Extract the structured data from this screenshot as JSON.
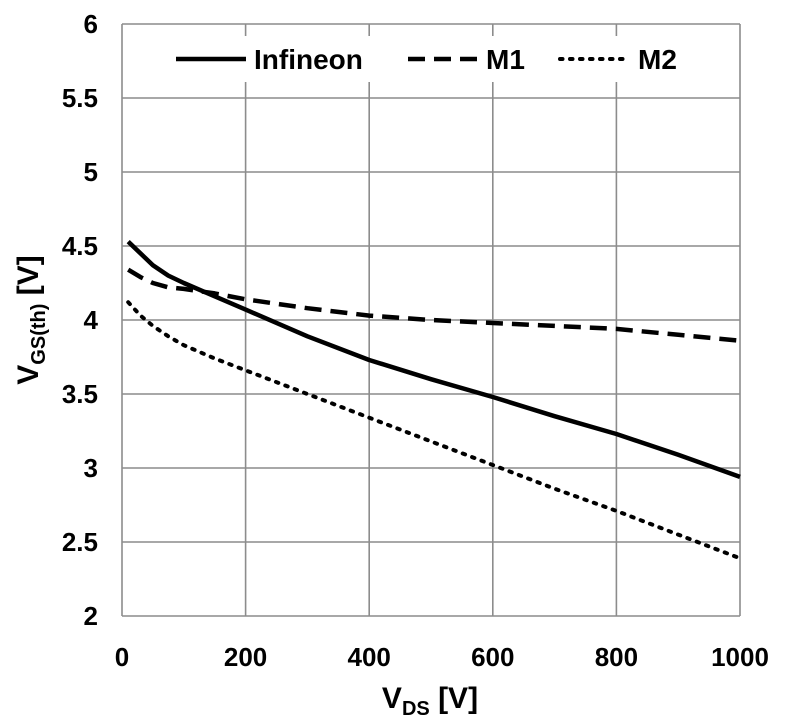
{
  "chart_data": {
    "type": "line",
    "xlabel": {
      "main": "V",
      "sub": "DS",
      "unit": " [V]"
    },
    "ylabel": {
      "main": "V",
      "sub": "GS(th)",
      "unit": " [V]"
    },
    "xlim": [
      0,
      1000
    ],
    "ylim": [
      2,
      6
    ],
    "x_ticks": [
      "0",
      "200",
      "400",
      "600",
      "800",
      "1000"
    ],
    "y_ticks": [
      "2",
      "2.5",
      "3",
      "3.5",
      "4",
      "4.5",
      "5",
      "5.5",
      "6"
    ],
    "grid": true,
    "legend_position": "top",
    "series": [
      {
        "name": "Infineon",
        "style": "solid",
        "color": "#000000",
        "x": [
          10,
          30,
          50,
          75,
          100,
          150,
          200,
          300,
          400,
          500,
          600,
          700,
          800,
          900,
          1000
        ],
        "y": [
          4.53,
          4.45,
          4.37,
          4.3,
          4.25,
          4.16,
          4.07,
          3.89,
          3.73,
          3.6,
          3.48,
          3.35,
          3.23,
          3.09,
          2.94
        ]
      },
      {
        "name": "M1",
        "style": "dashed",
        "color": "#000000",
        "x": [
          10,
          30,
          50,
          75,
          100,
          150,
          200,
          300,
          400,
          500,
          600,
          700,
          800,
          900,
          1000
        ],
        "y": [
          4.34,
          4.29,
          4.25,
          4.22,
          4.21,
          4.18,
          4.14,
          4.08,
          4.03,
          4.0,
          3.98,
          3.96,
          3.94,
          3.9,
          3.86
        ]
      },
      {
        "name": "M2",
        "style": "dotted",
        "color": "#000000",
        "x": [
          10,
          30,
          50,
          75,
          100,
          150,
          200,
          300,
          400,
          500,
          600,
          700,
          800,
          900,
          1000
        ],
        "y": [
          4.12,
          4.03,
          3.96,
          3.89,
          3.83,
          3.74,
          3.66,
          3.5,
          3.34,
          3.18,
          3.02,
          2.86,
          2.71,
          2.55,
          2.39
        ]
      }
    ]
  }
}
